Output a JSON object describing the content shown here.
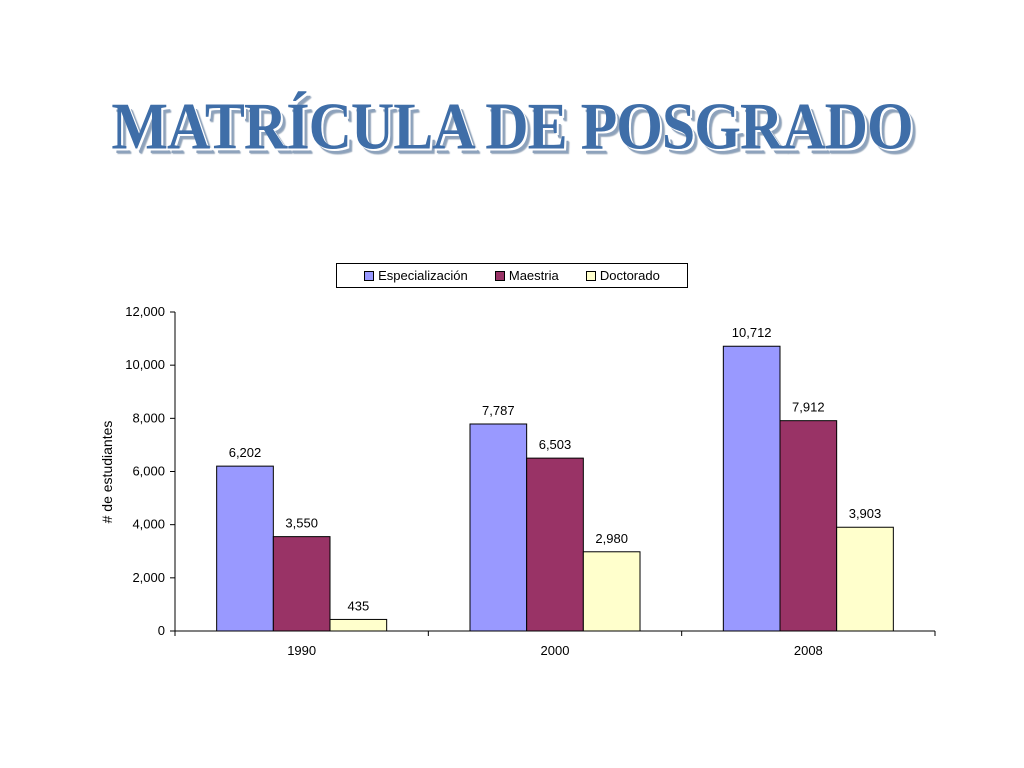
{
  "slide": {
    "title": "MATRÍCULA DE POSGRADO"
  },
  "chart_data": {
    "type": "bar",
    "title": "",
    "xlabel": "",
    "ylabel": "# de estudiantes",
    "categories": [
      "1990",
      "2000",
      "2008"
    ],
    "series": [
      {
        "name": "Especialización",
        "color": "#9999ff",
        "values": [
          6202,
          7787,
          10712
        ],
        "labels": [
          "6,202",
          "7,787",
          "10,712"
        ]
      },
      {
        "name": "Maestria",
        "color": "#993366",
        "values": [
          3550,
          6503,
          7912
        ],
        "labels": [
          "3,550",
          "6,503",
          "7,912"
        ]
      },
      {
        "name": "Doctorado",
        "color": "#ffffcc",
        "values": [
          435,
          2980,
          3903
        ],
        "labels": [
          "435",
          "2,980",
          "3,903"
        ]
      }
    ],
    "ylim": [
      0,
      12000
    ],
    "yticks": [
      0,
      2000,
      4000,
      6000,
      8000,
      10000,
      12000
    ],
    "ytick_labels": [
      "0",
      "2,000",
      "4,000",
      "6,000",
      "8,000",
      "10,000",
      "12,000"
    ],
    "grid": false,
    "legend_position": "top"
  }
}
